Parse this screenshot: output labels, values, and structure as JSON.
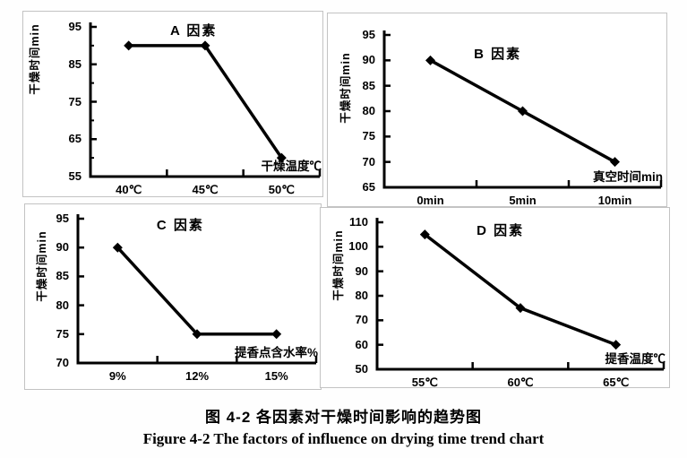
{
  "figure": {
    "caption_zh": "图 4-2 各因素对干燥时间影响的趋势图",
    "caption_en": "Figure 4-2 The factors of influence on drying time trend chart"
  },
  "colors": {
    "line": "#000000",
    "text": "#000000",
    "panel_border": "#c3c3c3",
    "background": "#ffffff"
  },
  "chart_data": [
    {
      "type": "line",
      "panel": "A",
      "title": "A 因素",
      "ylabel": "干燥时间min",
      "xlabel": "干燥温度℃",
      "categories": [
        "40℃",
        "45℃",
        "50℃"
      ],
      "values": [
        90,
        90,
        60
      ],
      "ylim": [
        55,
        95
      ],
      "ytick_step": 10,
      "ytick_minor_step": 5,
      "marker": "diamond",
      "grid": false,
      "legend": false
    },
    {
      "type": "line",
      "panel": "B",
      "title": "B 因素",
      "ylabel": "干燥时间min",
      "xlabel": "真空时间min",
      "categories": [
        "0min",
        "5min",
        "10min"
      ],
      "values": [
        90,
        80,
        70
      ],
      "ylim": [
        65,
        95
      ],
      "ytick_step": 5,
      "ytick_minor_step": null,
      "marker": "diamond",
      "grid": false,
      "legend": false
    },
    {
      "type": "line",
      "panel": "C",
      "title": "C 因素",
      "ylabel": "干燥时间min",
      "xlabel": "提香点含水率%",
      "categories": [
        "9%",
        "12%",
        "15%"
      ],
      "values": [
        90,
        75,
        75
      ],
      "ylim": [
        70,
        95
      ],
      "ytick_step": 5,
      "ytick_minor_step": null,
      "marker": "diamond",
      "grid": false,
      "legend": false
    },
    {
      "type": "line",
      "panel": "D",
      "title": "D 因素",
      "ylabel": "干燥时间min",
      "xlabel": "提香温度℃",
      "categories": [
        "55℃",
        "60℃",
        "65℃"
      ],
      "values": [
        105,
        75,
        60
      ],
      "ylim": [
        50,
        110
      ],
      "ytick_step": 10,
      "ytick_minor_step": null,
      "marker": "diamond",
      "grid": false,
      "legend": false
    }
  ]
}
